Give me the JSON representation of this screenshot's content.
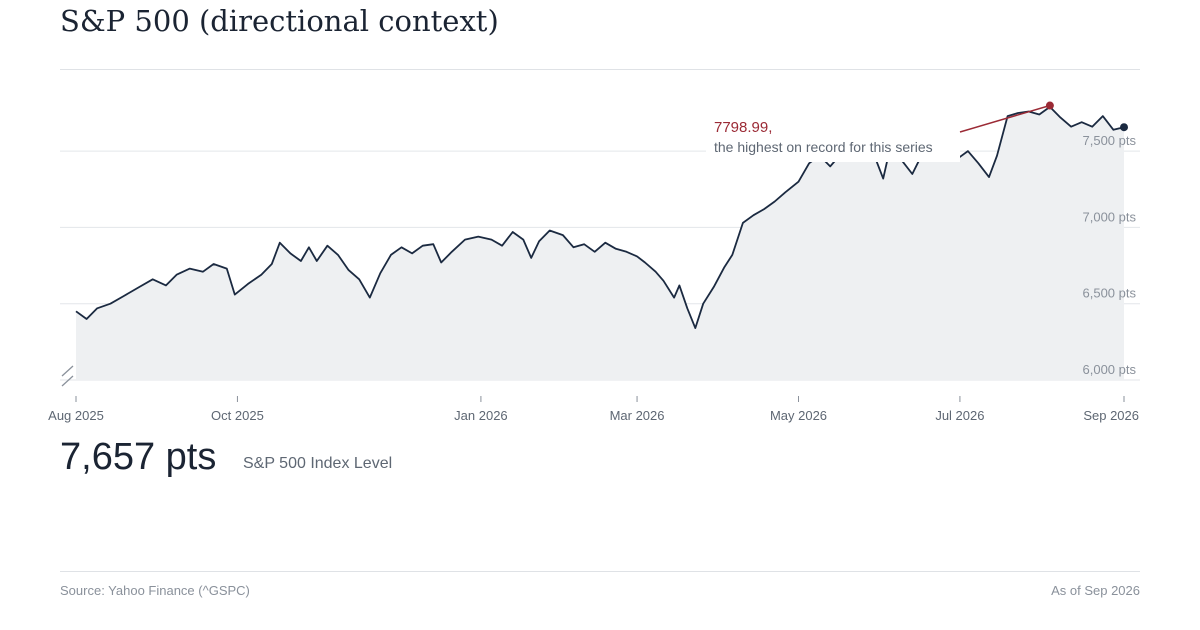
{
  "title": "S&P 500 (directional context)",
  "headline": {
    "value": "7,657 pts",
    "label": "S&P 500 Index Level"
  },
  "footer": {
    "source": "Source: Yahoo Finance (^GSPC)",
    "as_of": "As of Sep 2026"
  },
  "colors": {
    "line": "#1b2a41",
    "area": "#eef0f2",
    "annotation": "#9b2a35",
    "grid": "#e3e6ea",
    "axis_text": "#8a919b"
  },
  "chart_data": {
    "type": "area",
    "xlabel": "",
    "ylabel": "",
    "ylim": [
      6000,
      7750
    ],
    "x_range": [
      "2025-08-01",
      "2026-09-01"
    ],
    "y_ticks": [
      {
        "value": 6000,
        "label": "6,000 pts"
      },
      {
        "value": 6500,
        "label": "6,500 pts"
      },
      {
        "value": 7000,
        "label": "7,000 pts"
      },
      {
        "value": 7500,
        "label": "7,500 pts"
      }
    ],
    "x_ticks": [
      {
        "date": "2025-08-01",
        "label": "Aug 2025"
      },
      {
        "date": "2025-10-01",
        "label": "Oct 2025"
      },
      {
        "date": "2026-01-01",
        "label": "Jan 2026"
      },
      {
        "date": "2026-03-01",
        "label": "Mar 2026"
      },
      {
        "date": "2026-05-01",
        "label": "May 2026"
      },
      {
        "date": "2026-07-01",
        "label": "Jul 2026"
      },
      {
        "date": "2026-09-01",
        "label": "Sep 2026"
      }
    ],
    "grid": true,
    "y_axis_broken": true,
    "annotation": {
      "date": "2026-08-04",
      "value": 7798.99,
      "value_text": "7798.99,",
      "text": "the highest on record for this series"
    },
    "last_point": {
      "date": "2026-09-01",
      "value": 7657
    },
    "series": [
      {
        "values": [
          [
            "2025-08-01",
            6450
          ],
          [
            "2025-08-05",
            6400
          ],
          [
            "2025-08-09",
            6470
          ],
          [
            "2025-08-14",
            6500
          ],
          [
            "2025-08-19",
            6550
          ],
          [
            "2025-08-25",
            6610
          ],
          [
            "2025-08-30",
            6660
          ],
          [
            "2025-09-04",
            6620
          ],
          [
            "2025-09-08",
            6690
          ],
          [
            "2025-09-13",
            6730
          ],
          [
            "2025-09-18",
            6710
          ],
          [
            "2025-09-22",
            6760
          ],
          [
            "2025-09-27",
            6730
          ],
          [
            "2025-09-30",
            6560
          ],
          [
            "2025-10-05",
            6630
          ],
          [
            "2025-10-10",
            6690
          ],
          [
            "2025-10-14",
            6760
          ],
          [
            "2025-10-17",
            6900
          ],
          [
            "2025-10-21",
            6830
          ],
          [
            "2025-10-25",
            6780
          ],
          [
            "2025-10-28",
            6870
          ],
          [
            "2025-10-31",
            6780
          ],
          [
            "2025-11-04",
            6880
          ],
          [
            "2025-11-08",
            6820
          ],
          [
            "2025-11-12",
            6720
          ],
          [
            "2025-11-16",
            6660
          ],
          [
            "2025-11-20",
            6540
          ],
          [
            "2025-11-24",
            6700
          ],
          [
            "2025-11-28",
            6820
          ],
          [
            "2025-12-02",
            6870
          ],
          [
            "2025-12-06",
            6830
          ],
          [
            "2025-12-10",
            6880
          ],
          [
            "2025-12-14",
            6890
          ],
          [
            "2025-12-17",
            6770
          ],
          [
            "2025-12-21",
            6840
          ],
          [
            "2025-12-26",
            6920
          ],
          [
            "2025-12-31",
            6940
          ],
          [
            "2026-01-05",
            6920
          ],
          [
            "2026-01-09",
            6880
          ],
          [
            "2026-01-13",
            6970
          ],
          [
            "2026-01-17",
            6920
          ],
          [
            "2026-01-20",
            6800
          ],
          [
            "2026-01-23",
            6910
          ],
          [
            "2026-01-27",
            6980
          ],
          [
            "2026-02-01",
            6950
          ],
          [
            "2026-02-05",
            6870
          ],
          [
            "2026-02-09",
            6890
          ],
          [
            "2026-02-13",
            6840
          ],
          [
            "2026-02-17",
            6900
          ],
          [
            "2026-02-21",
            6860
          ],
          [
            "2026-02-25",
            6840
          ],
          [
            "2026-03-01",
            6810
          ],
          [
            "2026-03-04",
            6770
          ],
          [
            "2026-03-08",
            6710
          ],
          [
            "2026-03-11",
            6650
          ],
          [
            "2026-03-15",
            6540
          ],
          [
            "2026-03-17",
            6620
          ],
          [
            "2026-03-20",
            6470
          ],
          [
            "2026-03-23",
            6340
          ],
          [
            "2026-03-26",
            6500
          ],
          [
            "2026-03-30",
            6610
          ],
          [
            "2026-04-03",
            6740
          ],
          [
            "2026-04-06",
            6820
          ],
          [
            "2026-04-10",
            7030
          ],
          [
            "2026-04-14",
            7080
          ],
          [
            "2026-04-18",
            7120
          ],
          [
            "2026-04-22",
            7170
          ],
          [
            "2026-04-26",
            7230
          ],
          [
            "2026-05-01",
            7300
          ],
          [
            "2026-05-05",
            7420
          ],
          [
            "2026-05-09",
            7470
          ],
          [
            "2026-05-13",
            7400
          ],
          [
            "2026-05-17",
            7480
          ],
          [
            "2026-05-21",
            7520
          ],
          [
            "2026-05-25",
            7590
          ],
          [
            "2026-05-29",
            7500
          ],
          [
            "2026-06-02",
            7320
          ],
          [
            "2026-06-05",
            7550
          ],
          [
            "2026-06-09",
            7440
          ],
          [
            "2026-06-13",
            7350
          ],
          [
            "2026-06-17",
            7490
          ],
          [
            "2026-06-21",
            7540
          ],
          [
            "2026-06-26",
            7520
          ],
          [
            "2026-06-30",
            7450
          ],
          [
            "2026-07-04",
            7500
          ],
          [
            "2026-07-08",
            7420
          ],
          [
            "2026-07-12",
            7330
          ],
          [
            "2026-07-15",
            7470
          ],
          [
            "2026-07-19",
            7730
          ],
          [
            "2026-07-23",
            7750
          ],
          [
            "2026-07-27",
            7760
          ],
          [
            "2026-07-31",
            7740
          ],
          [
            "2026-08-04",
            7790
          ],
          [
            "2026-08-08",
            7720
          ],
          [
            "2026-08-12",
            7660
          ],
          [
            "2026-08-16",
            7690
          ],
          [
            "2026-08-20",
            7660
          ],
          [
            "2026-08-24",
            7730
          ],
          [
            "2026-08-28",
            7640
          ],
          [
            "2026-09-01",
            7657
          ]
        ]
      }
    ]
  }
}
